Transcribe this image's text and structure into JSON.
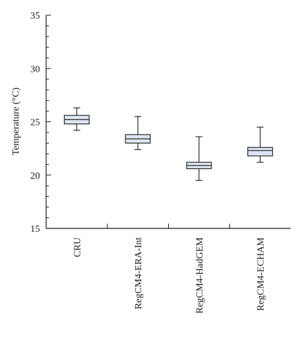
{
  "chart_data": {
    "type": "boxplot",
    "title": "",
    "xlabel": "",
    "ylabel": "Temperature (°C)",
    "ylim": [
      15,
      35
    ],
    "yticks": [
      15,
      20,
      25,
      30,
      35
    ],
    "y_minor_step": 1,
    "grid": false,
    "categories": [
      "CRU",
      "RegCM4-ERA-Int",
      "RegCM4-HadGEM",
      "RegCM4-ECHAM"
    ],
    "boxes": [
      {
        "whisker_low": 24.2,
        "q1": 24.8,
        "median": 25.2,
        "q3": 25.6,
        "whisker_high": 26.3
      },
      {
        "whisker_low": 22.4,
        "q1": 23.0,
        "median": 23.4,
        "q3": 23.8,
        "whisker_high": 25.5
      },
      {
        "whisker_low": 19.5,
        "q1": 20.6,
        "median": 20.9,
        "q3": 21.2,
        "whisker_high": 23.6
      },
      {
        "whisker_low": 21.2,
        "q1": 21.8,
        "median": 22.3,
        "q3": 22.6,
        "whisker_high": 24.5
      }
    ],
    "colors": {
      "box_fill": "#dce6f2",
      "stroke": "#2a2a2a",
      "axis": "#1a1a1a"
    }
  }
}
